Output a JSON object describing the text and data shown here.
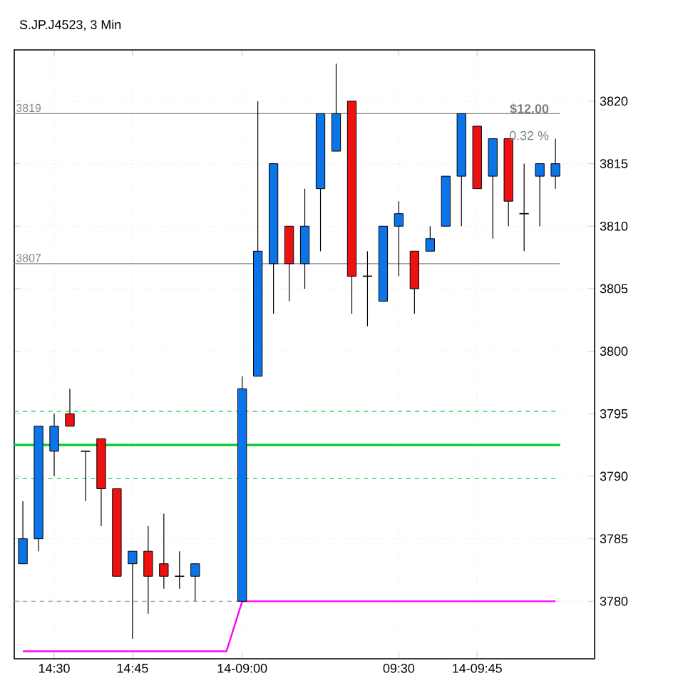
{
  "chart_data": {
    "type": "candlestick",
    "title": "S.JP.J4523, 3 Min",
    "categories": [
      null,
      null,
      "14:30",
      null,
      null,
      null,
      null,
      "14:45",
      null,
      null,
      null,
      null,
      null,
      null,
      "14-09:00",
      null,
      null,
      null,
      null,
      null,
      null,
      null,
      null,
      null,
      "09:30",
      null,
      null,
      null,
      null,
      "14-09:45",
      null,
      null,
      null,
      null,
      null
    ],
    "ohlc": [
      [
        3783,
        3788,
        3783,
        3785
      ],
      [
        3785,
        3794,
        3784,
        3794
      ],
      [
        3792,
        3795,
        3790,
        3794
      ],
      [
        3795,
        3797,
        3794,
        3794
      ],
      [
        3792,
        3792,
        3788,
        3792
      ],
      [
        3793,
        3793,
        3786,
        3789
      ],
      [
        3789,
        3789,
        3782,
        3782
      ],
      [
        3783,
        3784,
        3777,
        3784
      ],
      [
        3784,
        3786,
        3779,
        3782
      ],
      [
        3783,
        3787,
        3781,
        3782
      ],
      [
        3782,
        3784,
        3781,
        3782
      ],
      [
        3782,
        3783,
        3780,
        3783
      ],
      null,
      null,
      [
        3780,
        3798,
        3780,
        3797
      ],
      [
        3798,
        3820,
        3798,
        3808
      ],
      [
        3807,
        3815,
        3803,
        3815
      ],
      [
        3810,
        3810,
        3804,
        3807
      ],
      [
        3807,
        3813,
        3805,
        3810
      ],
      [
        3813,
        3819,
        3808,
        3819
      ],
      [
        3816,
        3823,
        3816,
        3819
      ],
      [
        3820,
        3820,
        3803,
        3806
      ],
      [
        3806,
        3808,
        3802,
        3806
      ],
      [
        3804,
        3810,
        3804,
        3810
      ],
      [
        3810,
        3812,
        3806,
        3811
      ],
      [
        3808,
        3808,
        3803,
        3805
      ],
      [
        3808,
        3810,
        3808,
        3809
      ],
      [
        3810,
        3814,
        3810,
        3814
      ],
      [
        3814,
        3819,
        3810,
        3819
      ],
      [
        3818,
        3818,
        3813,
        3813
      ],
      [
        3814,
        3817,
        3809,
        3817
      ],
      [
        3817,
        3817,
        3810,
        3812
      ],
      [
        3811,
        3815,
        3808,
        3811
      ],
      [
        3814,
        3815,
        3810,
        3815
      ],
      [
        3814,
        3817,
        3813,
        3815
      ]
    ],
    "colors": [
      "#0a74e8",
      "#0a74e8",
      "#0a74e8",
      "#ee1111",
      "#000000",
      "#ee1111",
      "#ee1111",
      "#0a74e8",
      "#ee1111",
      "#ee1111",
      "#000000",
      "#0a74e8",
      null,
      null,
      "#0a74e8",
      "#0a74e8",
      "#0a74e8",
      "#ee1111",
      "#0a74e8",
      "#0a74e8",
      "#0a74e8",
      "#ee1111",
      "#000000",
      "#0a74e8",
      "#0a74e8",
      "#ee1111",
      "#0a74e8",
      "#0a74e8",
      "#0a74e8",
      "#ee1111",
      "#0a74e8",
      "#ee1111",
      "#000000",
      "#0a74e8",
      "#0a74e8"
    ],
    "series": [
      {
        "type": "line",
        "color": "#ff00ff",
        "values": [
          3776,
          3776,
          3776,
          3776,
          3776,
          3776,
          3776,
          3776,
          3776,
          3776,
          3776,
          3776,
          3776,
          3776,
          3780,
          3780,
          3780,
          3780,
          3780,
          3780,
          3780,
          3780,
          3780,
          3780,
          3780,
          3780,
          3780,
          3780,
          3780,
          3780,
          3780,
          3780,
          3780,
          3780,
          3780
        ]
      }
    ],
    "ylim": [
      3775.4,
      3824.1
    ],
    "yticks": [
      3780,
      3785,
      3790,
      3795,
      3800,
      3805,
      3810,
      3815,
      3820
    ],
    "grid": true,
    "ref_lines": [
      {
        "axis": "y",
        "value": 3795.2,
        "color": "#00cc33",
        "line_style": "dashed"
      },
      {
        "axis": "y",
        "value": 3792.5,
        "color": "#00cc33",
        "line_style": "solid"
      },
      {
        "axis": "y",
        "value": 3789.8,
        "color": "#00cc33",
        "line_style": "dashed"
      },
      {
        "axis": "y",
        "value": 3780,
        "color": "#999999",
        "line_style": "dashed"
      },
      {
        "axis": "y",
        "value": 3819,
        "label": "3819",
        "color": "#888888",
        "line_style": "solid"
      },
      {
        "axis": "y",
        "value": 3807,
        "label": "3807",
        "color": "#888888",
        "line_style": "solid"
      }
    ],
    "annotations": [
      "$12.00",
      "0.32 %"
    ]
  }
}
